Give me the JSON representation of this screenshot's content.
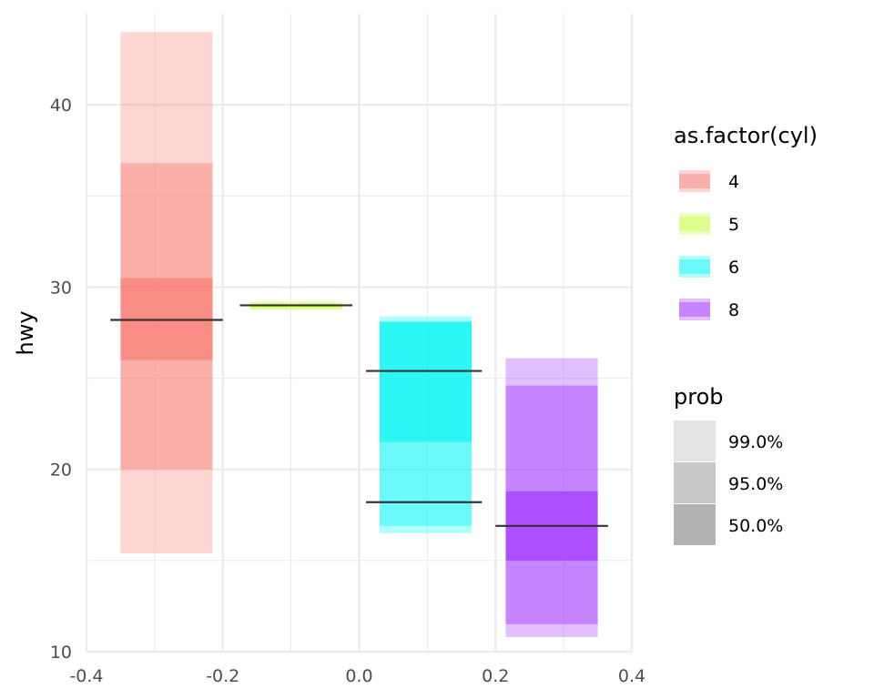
{
  "chart_data": {
    "type": "interval",
    "xlabel": "",
    "ylabel": "hwy",
    "xlim": [
      -0.4,
      0.4
    ],
    "ylim": [
      10,
      45
    ],
    "x_ticks": [
      "-0.4",
      "-0.2",
      "0.0",
      "0.2",
      "0.4"
    ],
    "y_ticks": [
      "10",
      "20",
      "30",
      "40"
    ],
    "grid": true,
    "legend_placement": "right",
    "groups": [
      {
        "name": "4",
        "color": "#F8766D",
        "x": [
          -0.35,
          -0.215
        ],
        "intervals": [
          {
            "prob": "99.0%",
            "lo": 15.4,
            "hi": 44.0
          },
          {
            "prob": "95.0%",
            "lo": 20.0,
            "hi": 36.8
          },
          {
            "prob": "50.0%",
            "lo": 26.0,
            "hi": 30.5
          }
        ],
        "medians": [
          {
            "y": 28.2,
            "x": [
              -0.365,
              -0.2
            ]
          }
        ]
      },
      {
        "name": "5",
        "color": "#C5FF3A",
        "x": [
          -0.16,
          -0.025
        ],
        "intervals": [
          {
            "prob": "99.0%",
            "lo": 28.75,
            "hi": 29.2
          },
          {
            "prob": "95.0%",
            "lo": 28.8,
            "hi": 29.15
          },
          {
            "prob": "50.0%",
            "lo": 28.9,
            "hi": 29.05
          }
        ],
        "medians": [
          {
            "y": 29.0,
            "x": [
              -0.175,
              -0.01
            ]
          }
        ]
      },
      {
        "name": "6",
        "color": "#00F5F5",
        "x": [
          0.03,
          0.165
        ],
        "intervals": [
          {
            "prob": "99.0%",
            "lo": 16.5,
            "hi": 28.4
          },
          {
            "prob": "95.0%",
            "lo": 16.9,
            "hi": 28.1
          },
          {
            "prob": "50.0%",
            "lo": 21.5,
            "hi": 28.1
          }
        ],
        "medians": [
          {
            "y": 25.4,
            "x": [
              0.01,
              0.18
            ]
          },
          {
            "y": 18.2,
            "x": [
              0.01,
              0.18
            ]
          }
        ]
      },
      {
        "name": "8",
        "color": "#9E2CFF",
        "x": [
          0.215,
          0.35
        ],
        "intervals": [
          {
            "prob": "99.0%",
            "lo": 10.8,
            "hi": 26.1
          },
          {
            "prob": "95.0%",
            "lo": 11.5,
            "hi": 24.6
          },
          {
            "prob": "50.0%",
            "lo": 15.0,
            "hi": 18.8
          }
        ],
        "medians": [
          {
            "y": 16.9,
            "x": [
              0.2,
              0.365
            ]
          }
        ]
      }
    ],
    "probs": [
      {
        "label": "99.0%",
        "opacity": 0.3
      },
      {
        "label": "95.0%",
        "opacity": 0.4
      },
      {
        "label": "50.0%",
        "opacity": 0.6
      }
    ],
    "legend_fill": {
      "title": "as.factor(cyl)",
      "entries": [
        "4",
        "5",
        "6",
        "8"
      ]
    },
    "legend_prob": {
      "title": "prob",
      "entries": [
        "99.0%",
        "95.0%",
        "50.0%"
      ]
    }
  }
}
